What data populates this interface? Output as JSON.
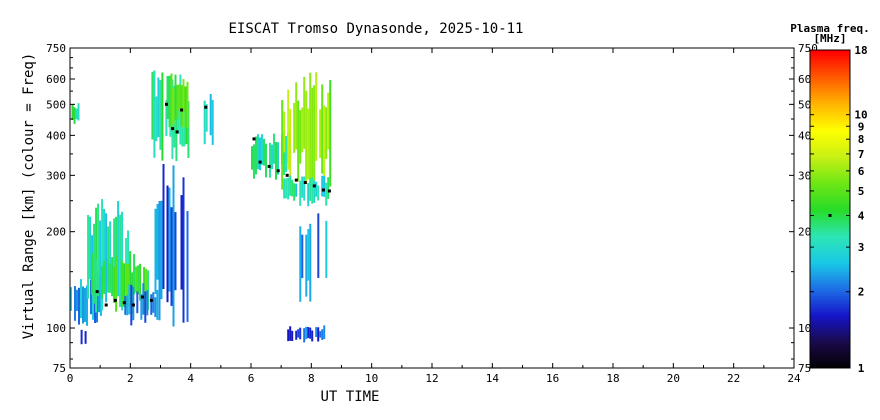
{
  "chart_data": {
    "type": "heatmap",
    "title": "EISCAT Tromso Dynasonde, 2025-10-11",
    "xlabel": "UT TIME",
    "ylabel": "Virtual Range [km] (colour = Freq)",
    "xlim": [
      0,
      24
    ],
    "ylim": [
      75,
      750
    ],
    "yscale": "log",
    "x_ticks": [
      0,
      2,
      4,
      6,
      8,
      10,
      12,
      14,
      16,
      18,
      20,
      22,
      24
    ],
    "y_ticks": [
      75,
      100,
      200,
      300,
      400,
      500,
      600,
      750
    ],
    "colorbar": {
      "title_line1": "Plasma freq.",
      "title_line2": "[MHz]",
      "scale": "log",
      "range": [
        1,
        18
      ],
      "ticks": [
        1,
        2,
        3,
        4,
        5,
        6,
        7,
        8,
        9,
        10,
        18
      ],
      "marker_value": 4,
      "colors": [
        "#000000",
        "#1a0a4a",
        "#1515c8",
        "#1e6ee6",
        "#19c8e6",
        "#2de6b4",
        "#28dc28",
        "#6ee614",
        "#c8f014",
        "#ffff00",
        "#ffb400",
        "#ff5a00",
        "#ff0000"
      ]
    },
    "data_extent_hours": [
      0,
      8.6
    ],
    "regions": [
      {
        "x": [
          0.05,
          0.3
        ],
        "y": [
          430,
          510
        ],
        "freq": 3.4
      },
      {
        "x": [
          0.0,
          1.0
        ],
        "y": [
          100,
          150
        ],
        "freq": 2.3
      },
      {
        "x": [
          0.5,
          1.9
        ],
        "y": [
          105,
          260
        ],
        "freq": 3.2
      },
      {
        "x": [
          0.7,
          2.6
        ],
        "y": [
          110,
          175
        ],
        "freq": 4.2
      },
      {
        "x": [
          1.8,
          2.9
        ],
        "y": [
          100,
          140
        ],
        "freq": 2.2
      },
      {
        "x": [
          0.35,
          0.55
        ],
        "y": [
          88,
          100
        ],
        "freq": 2.1
      },
      {
        "x": [
          2.8,
          3.9
        ],
        "y": [
          100,
          330
        ],
        "freq": 2.0
      },
      {
        "x": [
          2.7,
          3.9
        ],
        "y": [
          330,
          640
        ],
        "freq": 3.5
      },
      {
        "x": [
          3.2,
          3.9
        ],
        "y": [
          420,
          640
        ],
        "freq": 4.5
      },
      {
        "x": [
          4.3,
          4.7
        ],
        "y": [
          370,
          540
        ],
        "freq": 3.1
      },
      {
        "x": [
          6.0,
          7.3
        ],
        "y": [
          290,
          420
        ],
        "freq": 3.3
      },
      {
        "x": [
          7.0,
          8.6
        ],
        "y": [
          270,
          640
        ],
        "freq": 5.5
      },
      {
        "x": [
          7.0,
          8.6
        ],
        "y": [
          240,
          300
        ],
        "freq": 3.2
      },
      {
        "x": [
          7.6,
          8.5
        ],
        "y": [
          120,
          240
        ],
        "freq": 2.3
      },
      {
        "x": [
          7.2,
          8.4
        ],
        "y": [
          90,
          102
        ],
        "freq": 1.9
      }
    ],
    "trace": [
      {
        "x": 0.9,
        "y": 130
      },
      {
        "x": 1.2,
        "y": 118
      },
      {
        "x": 1.5,
        "y": 122
      },
      {
        "x": 1.8,
        "y": 120
      },
      {
        "x": 2.1,
        "y": 118
      },
      {
        "x": 2.4,
        "y": 125
      },
      {
        "x": 2.7,
        "y": 122
      },
      {
        "x": 3.2,
        "y": 500
      },
      {
        "x": 3.4,
        "y": 420
      },
      {
        "x": 3.55,
        "y": 410
      },
      {
        "x": 3.7,
        "y": 480
      },
      {
        "x": 4.5,
        "y": 490
      },
      {
        "x": 6.1,
        "y": 390
      },
      {
        "x": 6.3,
        "y": 330
      },
      {
        "x": 6.6,
        "y": 320
      },
      {
        "x": 6.9,
        "y": 310
      },
      {
        "x": 7.2,
        "y": 300
      },
      {
        "x": 7.5,
        "y": 290
      },
      {
        "x": 7.8,
        "y": 285
      },
      {
        "x": 8.1,
        "y": 278
      },
      {
        "x": 8.4,
        "y": 270
      },
      {
        "x": 8.6,
        "y": 268
      }
    ]
  }
}
